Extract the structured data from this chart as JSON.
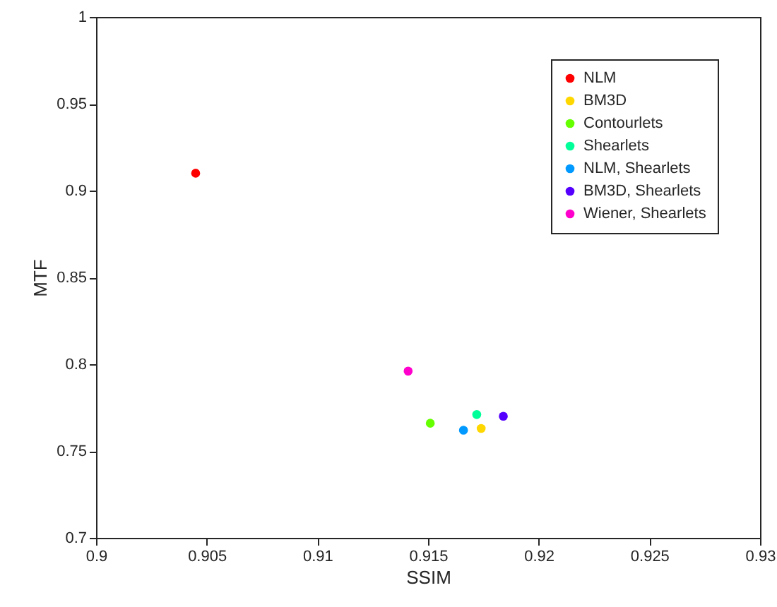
{
  "chart_data": {
    "type": "scatter",
    "xlabel": "SSIM",
    "ylabel": "MTF",
    "xlim": [
      0.9,
      0.93
    ],
    "xticks": [
      0.9,
      0.905,
      0.91,
      0.915,
      0.92,
      0.925,
      0.93
    ],
    "ylim": [
      0.7,
      1
    ],
    "yticks": [
      0.7,
      0.75,
      0.8,
      0.85,
      0.9,
      0.95,
      1
    ],
    "grid": false,
    "legend": "top right",
    "marker": "circle",
    "series": [
      {
        "name": "NLM",
        "color": "#ff0000",
        "x": [
          0.9045
        ],
        "values": [
          0.91
        ]
      },
      {
        "name": "BM3D",
        "color": "#ffd700",
        "x": [
          0.9174
        ],
        "values": [
          0.763
        ]
      },
      {
        "name": "Contourlets",
        "color": "#66ff00",
        "x": [
          0.9151
        ],
        "values": [
          0.766
        ]
      },
      {
        "name": "Shearlets",
        "color": "#00ff99",
        "x": [
          0.9172
        ],
        "values": [
          0.771
        ]
      },
      {
        "name": "NLM, Shearlets",
        "color": "#0099ff",
        "x": [
          0.9166
        ],
        "values": [
          0.762
        ]
      },
      {
        "name": "BM3D, Shearlets",
        "color": "#5500ff",
        "x": [
          0.9184
        ],
        "values": [
          0.77
        ]
      },
      {
        "name": "Wiener, Shearlets",
        "color": "#ff00cc",
        "x": [
          0.9141
        ],
        "values": [
          0.796
        ]
      }
    ]
  }
}
